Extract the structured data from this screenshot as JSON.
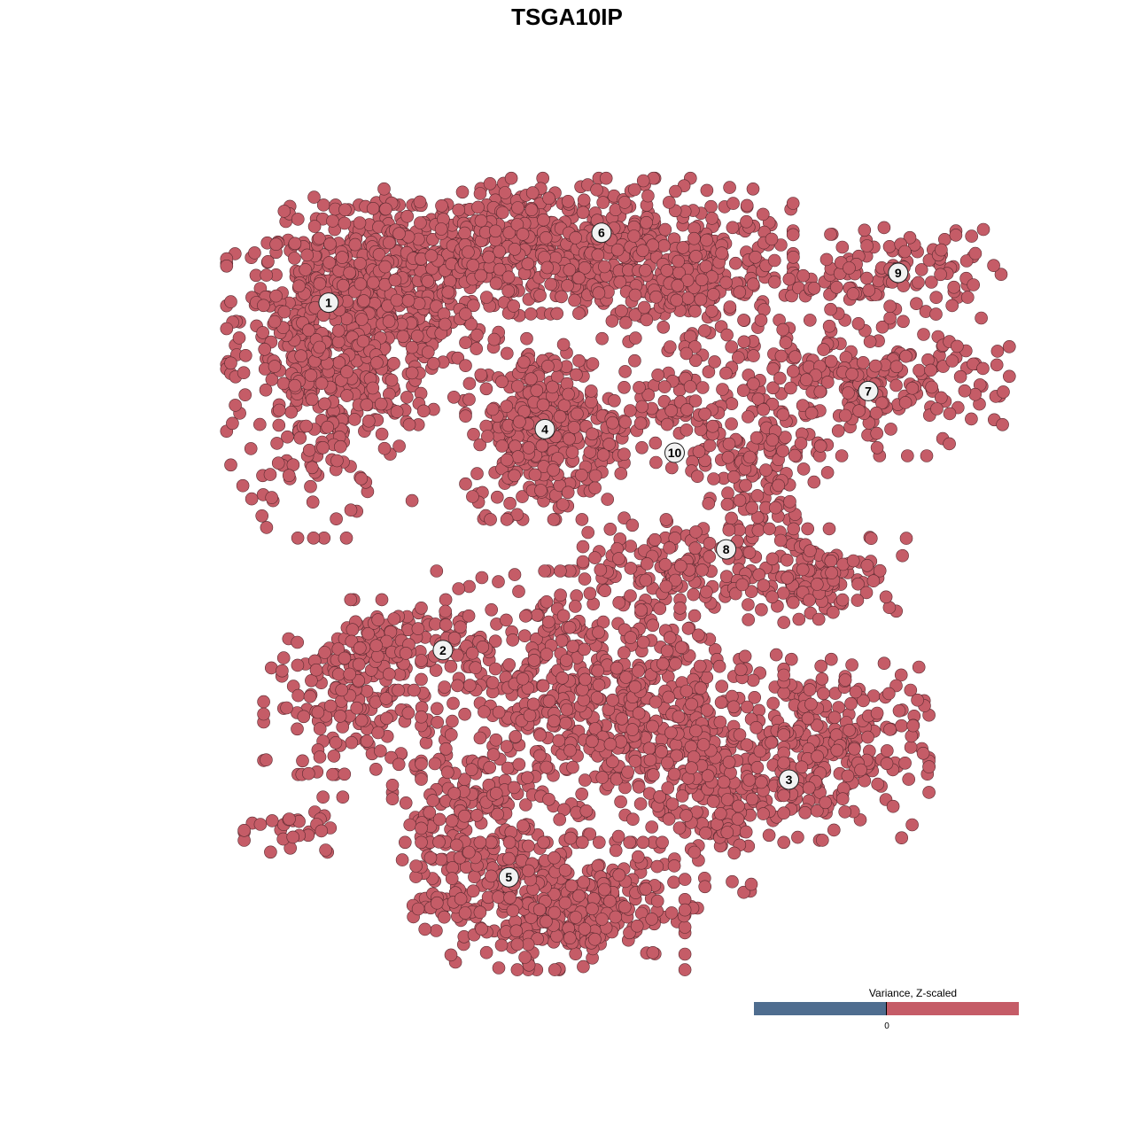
{
  "chart_data": {
    "type": "scatter",
    "title": "TSGA10IP",
    "xlabel": "",
    "ylabel": "",
    "grid": false,
    "point_color": "#c55c67",
    "point_edge_color": "#5a2a30",
    "xlim": [
      -40,
      40
    ],
    "ylim": [
      -39,
      39
    ],
    "clusters": [
      {
        "label": "1",
        "center": [
          -25.3,
          25.5
        ],
        "components": [
          [
            -22,
            24,
            6,
            5,
            500
          ],
          [
            -26,
            18,
            4,
            7,
            250
          ],
          [
            -15,
            30,
            7,
            3,
            250
          ]
        ]
      },
      {
        "label": "2",
        "center": [
          -14.2,
          -8.3
        ],
        "components": [
          [
            -22.8,
            -13.8,
            4,
            3,
            150
          ],
          [
            -18.5,
            -7.8,
            4,
            2,
            120
          ],
          [
            -28,
            -25.9,
            2.5,
            1.5,
            30
          ]
        ]
      },
      {
        "label": "3",
        "center": [
          19.4,
          -20.9
        ],
        "components": [
          [
            22,
            -18,
            5,
            4,
            300
          ],
          [
            11.6,
            -22.4,
            3,
            5,
            150
          ]
        ]
      },
      {
        "label": "4",
        "center": [
          -4.3,
          13.2
        ],
        "components": [
          [
            -4.3,
            13.2,
            3.5,
            4,
            350
          ]
        ]
      },
      {
        "label": "5",
        "center": [
          -7.8,
          -30.4
        ],
        "components": [
          [
            -3.9,
            -32.8,
            6,
            3,
            400
          ],
          [
            -12.5,
            -25,
            3,
            4,
            150
          ],
          [
            1.3,
            -13.8,
            8,
            6,
            700
          ]
        ]
      },
      {
        "label": "6",
        "center": [
          1.2,
          32.3
        ],
        "components": [
          [
            0,
            31,
            9,
            3,
            500
          ],
          [
            10,
            27,
            5,
            3,
            150
          ]
        ]
      },
      {
        "label": "7",
        "center": [
          27.1,
          16.9
        ],
        "components": [
          [
            25.4,
            17.2,
            7,
            3,
            250
          ]
        ]
      },
      {
        "label": "8",
        "center": [
          13.3,
          1.5
        ],
        "components": [
          [
            16.8,
            7.8,
            3,
            4,
            120
          ],
          [
            22,
            -0.9,
            4,
            2,
            130
          ],
          [
            8.2,
            0,
            4,
            2,
            100
          ]
        ]
      },
      {
        "label": "9",
        "center": [
          30.0,
          28.4
        ],
        "components": [
          [
            29,
            28.4,
            5,
            2,
            120
          ]
        ]
      },
      {
        "label": "10",
        "center": [
          8.3,
          10.9
        ],
        "components": [
          [
            9,
            14.6,
            4,
            3,
            100
          ]
        ]
      }
    ]
  },
  "legend": {
    "title": "Variance, Z-scaled",
    "tick": "0",
    "low_color": "#4f6d8f",
    "high_color": "#c55c67"
  }
}
